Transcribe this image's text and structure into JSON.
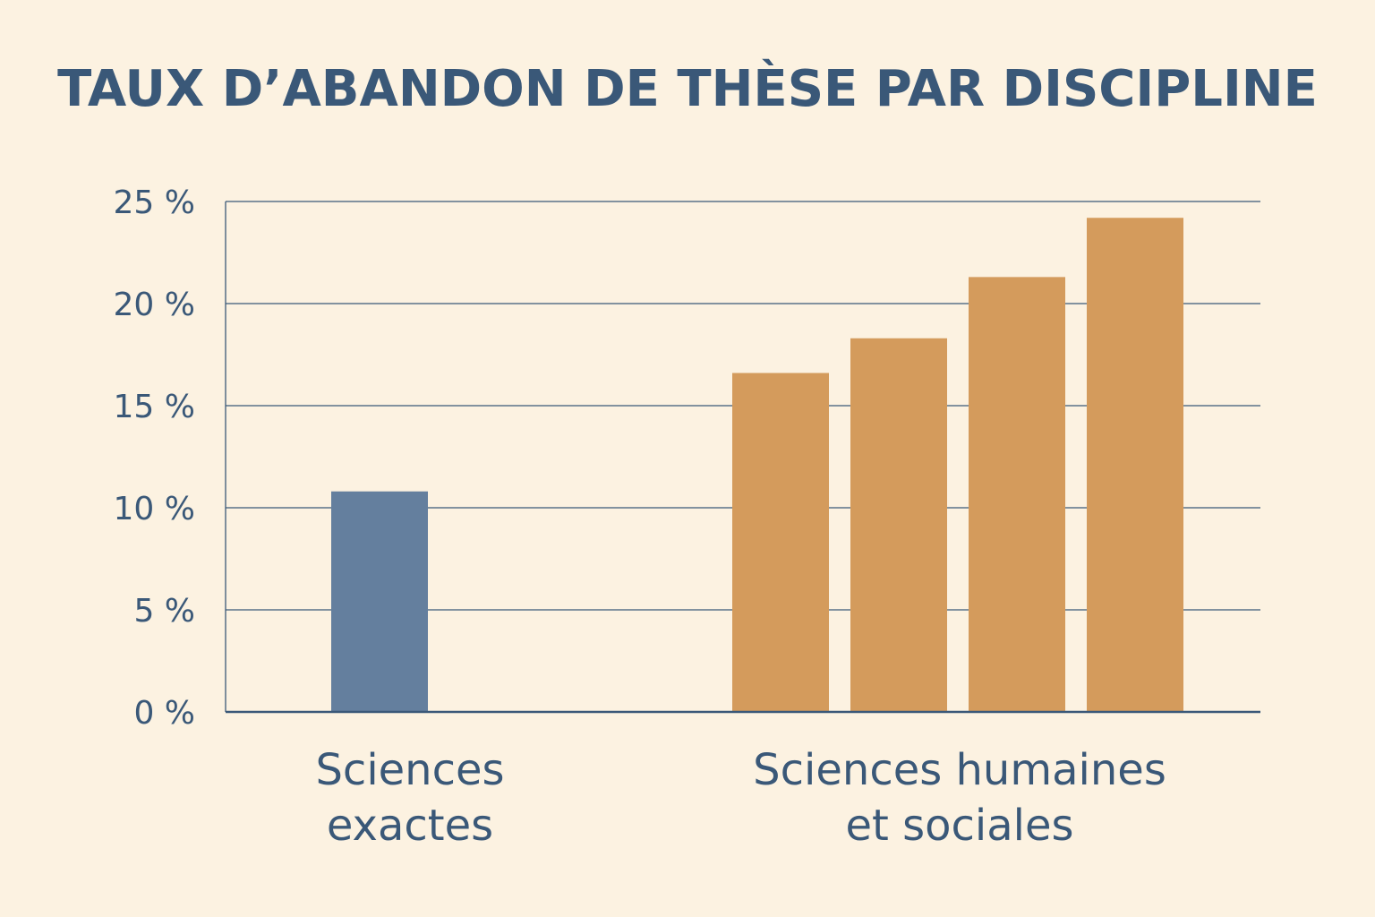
{
  "chart_data": {
    "type": "bar",
    "title": "TAUX D’ABANDON DE THÈSE PAR DISCIPLINE",
    "xlabel": "",
    "ylabel": "",
    "ylim": [
      0,
      25
    ],
    "yticks": [
      "0 %",
      "5 %",
      "10 %",
      "15 %",
      "20 %",
      "25 %"
    ],
    "grid": true,
    "groups": [
      {
        "label_lines": [
          "Sciences",
          "exactes"
        ],
        "color": "#647f9e",
        "values": [
          10.8
        ]
      },
      {
        "label_lines": [
          "Sciences humaines",
          "et sociales"
        ],
        "color": "#d49b5c",
        "values": [
          16.6,
          18.3,
          21.3,
          24.2
        ]
      }
    ]
  },
  "colors": {
    "background": "#fcf2e1",
    "text": "#3a5878",
    "grid": "#3a5878"
  }
}
